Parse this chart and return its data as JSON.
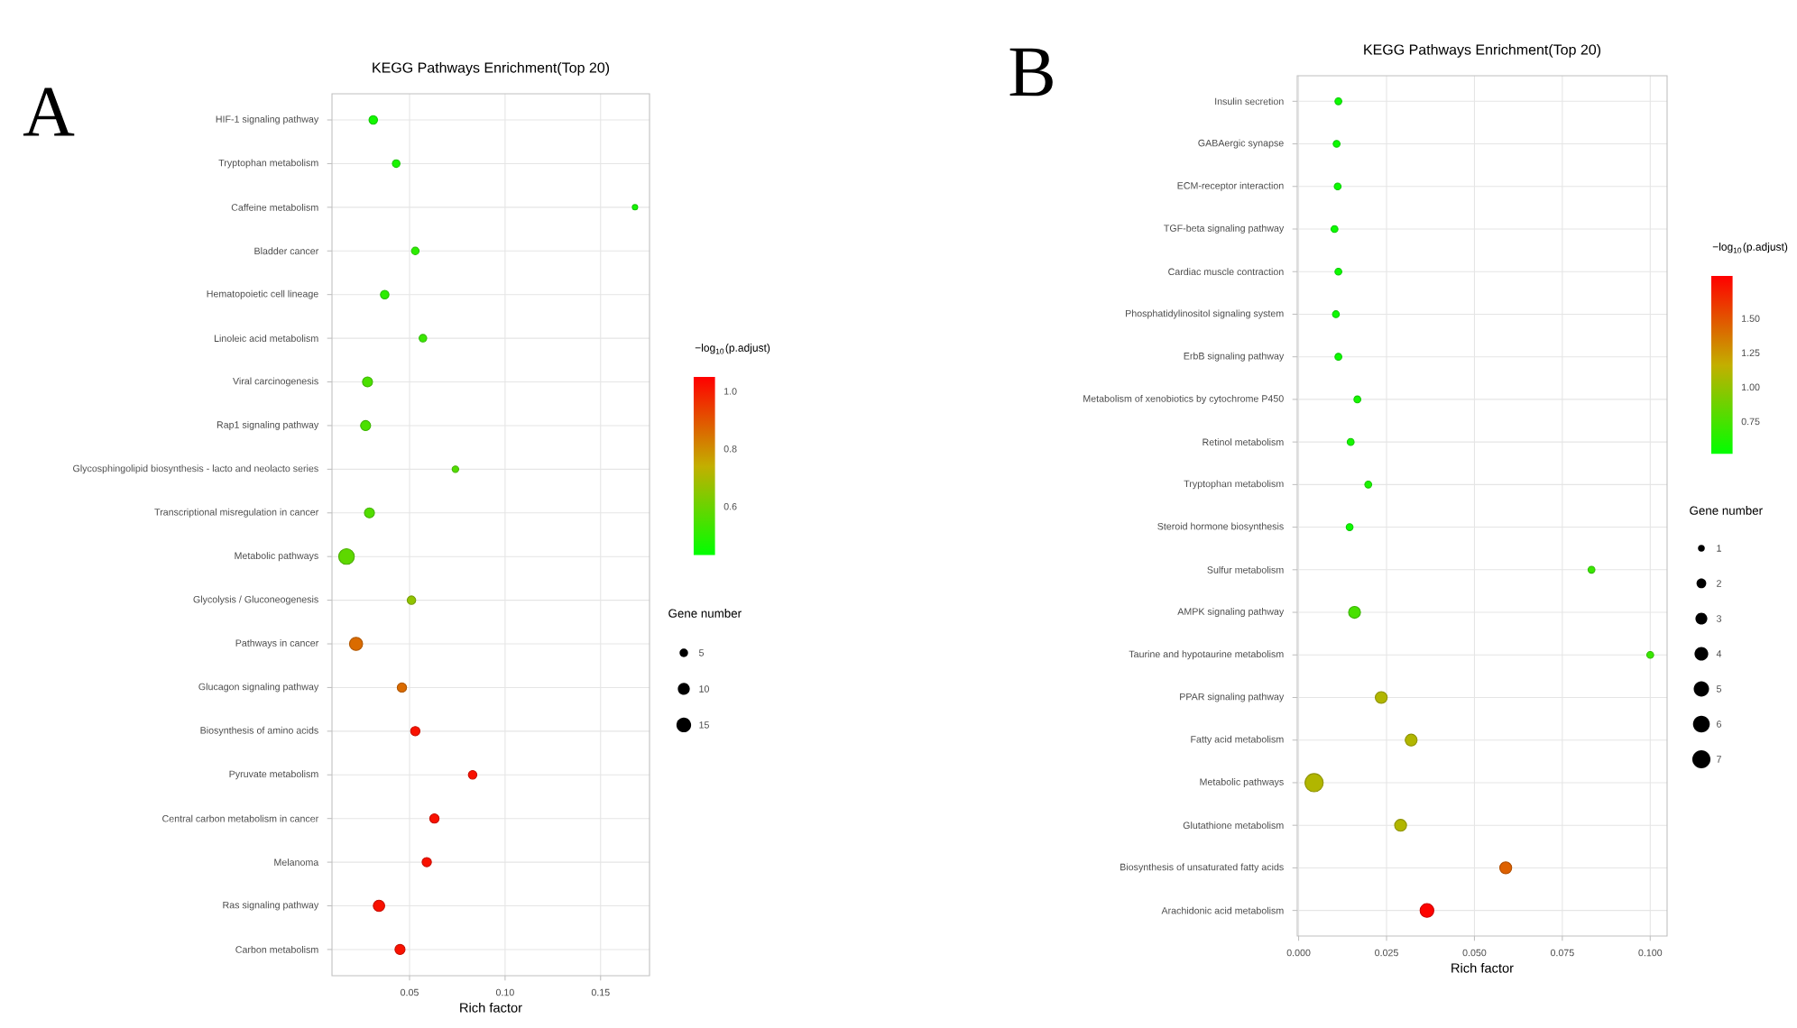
{
  "chart_data": [
    {
      "type": "bubble",
      "title": "KEGG Pathways Enrichment(Top 20)",
      "xlabel": "Rich factor",
      "orientation": "horizontal",
      "annotations": [
        "A"
      ],
      "categories": [
        "HIF-1 signaling pathway",
        "Tryptophan metabolism",
        "Caffeine metabolism",
        "Bladder cancer",
        "Hematopoietic cell lineage",
        "Linoleic acid metabolism",
        "Viral carcinogenesis",
        "Rap1 signaling pathway",
        "Glycosphingolipid biosynthesis - lacto and neolacto series",
        "Transcriptional misregulation in cancer",
        "Metabolic pathways",
        "Glycolysis / Gluconeogenesis",
        "Pathways in cancer",
        "Glucagon signaling pathway",
        "Biosynthesis of amino acids",
        "Pyruvate metabolism",
        "Central carbon metabolism in cancer",
        "Melanoma",
        "Ras signaling pathway",
        "Carbon metabolism"
      ],
      "values": [
        0.031,
        0.043,
        0.168,
        0.053,
        0.037,
        0.057,
        0.028,
        0.027,
        0.074,
        0.029,
        0.017,
        0.051,
        0.022,
        0.046,
        0.053,
        0.083,
        0.063,
        0.059,
        0.034,
        0.045
      ],
      "sizes": [
        5,
        4,
        2,
        4,
        5,
        4,
        7,
        7,
        3,
        7,
        17,
        5,
        12,
        6,
        6,
        5,
        6,
        6,
        9,
        7
      ],
      "cvalues": [
        0.46,
        0.47,
        0.46,
        0.5,
        0.5,
        0.52,
        0.55,
        0.55,
        0.56,
        0.56,
        0.58,
        0.66,
        0.86,
        0.86,
        1.02,
        1.02,
        1.02,
        1.02,
        1.02,
        1.02
      ],
      "xlim": [
        0.0094,
        0.1756
      ],
      "xticks": [
        {
          "value": 0.05,
          "label": "0.05"
        },
        {
          "value": 0.1,
          "label": "0.10"
        },
        {
          "value": 0.15,
          "label": "0.15"
        }
      ],
      "clabel": "−log$_{10}$(p.adjust)",
      "clim": [
        0.43,
        1.05
      ],
      "cticks": [
        {
          "value": 0.6,
          "label": "0.6"
        },
        {
          "value": 0.8,
          "label": "0.8"
        },
        {
          "value": 1,
          "label": "1.0"
        }
      ],
      "legend_title": "Gene number",
      "size_legend": [
        5,
        10,
        15
      ],
      "grid": true,
      "marker": "circle"
    },
    {
      "type": "bubble",
      "title": "KEGG Pathways Enrichment(Top 20)",
      "xlabel": "Rich factor",
      "orientation": "horizontal",
      "annotations": [
        "B"
      ],
      "categories": [
        "Insulin secretion",
        "GABAergic synapse",
        "ECM-receptor interaction",
        "TGF-beta signaling pathway",
        "Cardiac muscle contraction",
        "Phosphatidylinositol signaling system",
        "ErbB signaling pathway",
        "Metabolism of xenobiotics by cytochrome P450",
        "Retinol metabolism",
        "Tryptophan metabolism",
        "Steroid hormone biosynthesis",
        "Sulfur metabolism",
        "AMPK signaling pathway",
        "Taurine and hypotaurine metabolism",
        "PPAR signaling pathway",
        "Fatty acid metabolism",
        "Metabolic pathways",
        "Glutathione metabolism",
        "Biosynthesis of unsaturated fatty acids",
        "Arachidonic acid metabolism"
      ],
      "values": [
        0.0113,
        0.0108,
        0.0111,
        0.0102,
        0.0113,
        0.0106,
        0.0113,
        0.0167,
        0.0148,
        0.0198,
        0.0145,
        0.0833,
        0.0159,
        0.1,
        0.0235,
        0.032,
        0.0044,
        0.029,
        0.0589,
        0.0365
      ],
      "sizes": [
        1,
        1,
        1,
        1,
        1,
        1,
        1,
        1,
        1,
        1,
        1,
        1,
        3,
        1,
        3,
        3,
        7,
        3,
        3,
        4
      ],
      "cvalues": [
        0.55,
        0.55,
        0.55,
        0.55,
        0.55,
        0.55,
        0.55,
        0.58,
        0.58,
        0.6,
        0.55,
        0.7,
        0.75,
        0.7,
        1.1,
        1.1,
        1.1,
        1.1,
        1.45,
        1.8
      ],
      "xlim": [
        -0.0004,
        0.1048
      ],
      "xticks": [
        {
          "value": 0,
          "label": "0.000"
        },
        {
          "value": 0.025,
          "label": "0.025"
        },
        {
          "value": 0.05,
          "label": "0.050"
        },
        {
          "value": 0.075,
          "label": "0.075"
        },
        {
          "value": 0.1,
          "label": "0.100"
        }
      ],
      "clabel": "−log$_{10}$(p.adjust)",
      "clim": [
        0.51,
        1.81
      ],
      "cticks": [
        {
          "value": 0.75,
          "label": "0.75"
        },
        {
          "value": 1,
          "label": "1.00"
        },
        {
          "value": 1.25,
          "label": "1.25"
        },
        {
          "value": 1.5,
          "label": "1.50"
        }
      ],
      "legend_title": "Gene number",
      "size_legend": [
        1,
        2,
        3,
        4,
        5,
        6,
        7
      ],
      "grid": true,
      "marker": "circle"
    }
  ]
}
